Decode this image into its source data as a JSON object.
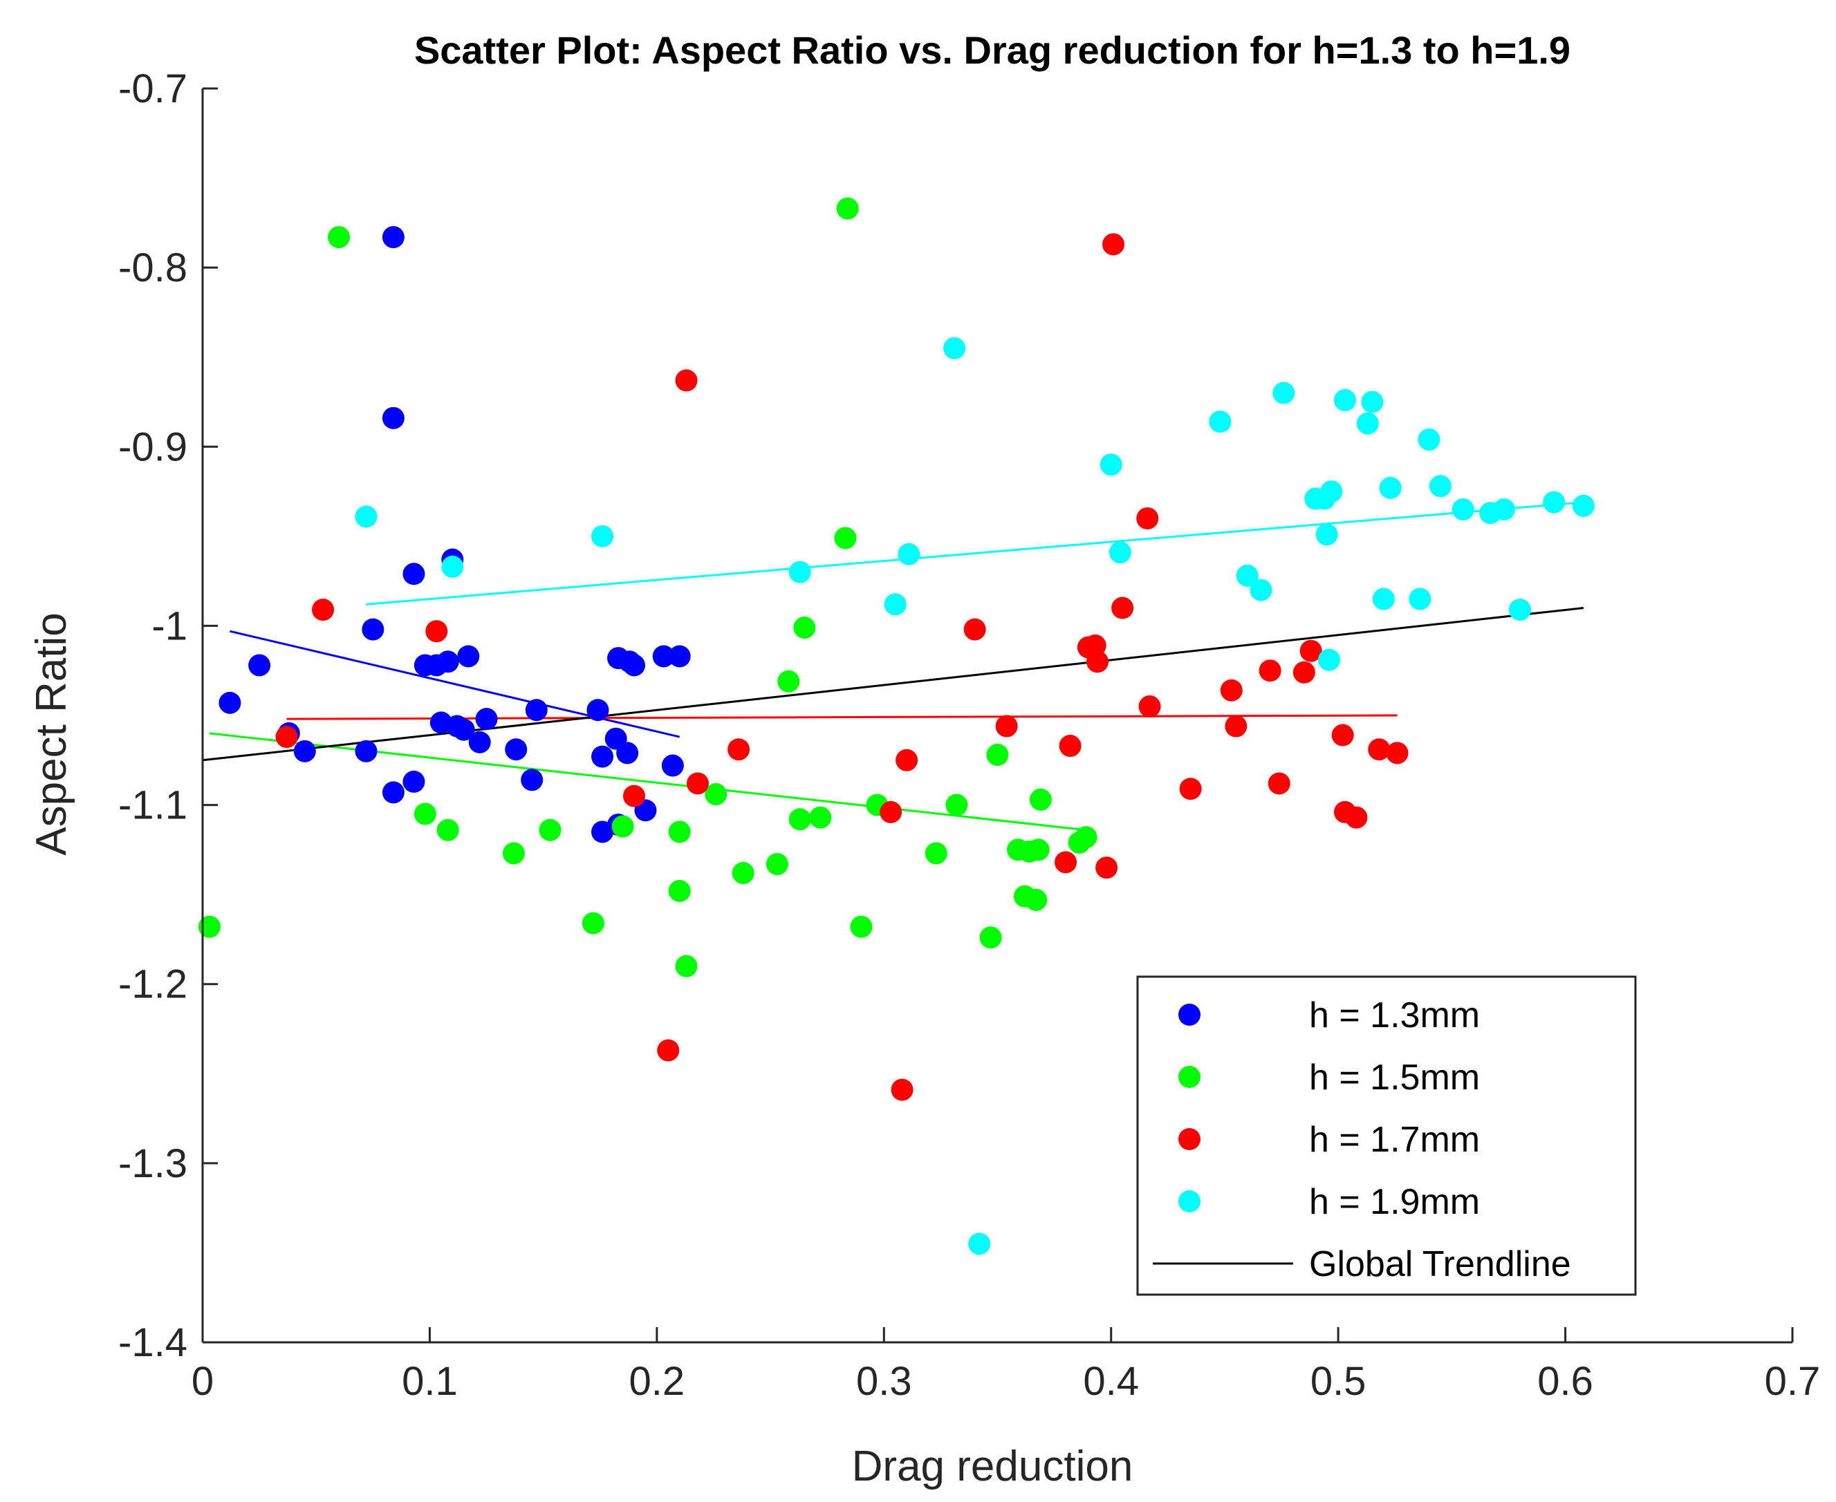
{
  "chart_data": {
    "type": "scatter",
    "title": "Scatter Plot: Aspect Ratio vs. Drag reduction for h=1.3 to h=1.9",
    "xlabel": "Drag reduction",
    "ylabel": "Aspect Ratio",
    "xlim": [
      0,
      0.7
    ],
    "ylim": [
      -1.4,
      -0.7
    ],
    "xticks": [
      0,
      0.1,
      0.2,
      0.3,
      0.4,
      0.5,
      0.6,
      0.7
    ],
    "xtick_labels": [
      "0",
      "0.1",
      "0.2",
      "0.3",
      "0.4",
      "0.5",
      "0.6",
      "0.7"
    ],
    "yticks": [
      -1.4,
      -1.3,
      -1.2,
      -1.1,
      -1.0,
      -0.9,
      -0.8,
      -0.7
    ],
    "ytick_labels": [
      "-1.4",
      "-1.3",
      "-1.2",
      "-1.1",
      "-1",
      "-0.9",
      "-0.8",
      "-0.7"
    ],
    "grid": false,
    "legend_position": "bottom-right",
    "series": [
      {
        "name": "h = 1.3mm",
        "color": "#0000ff",
        "points": [
          [
            0.012,
            -1.043
          ],
          [
            0.025,
            -1.022
          ],
          [
            0.038,
            -1.06
          ],
          [
            0.045,
            -1.07
          ],
          [
            0.072,
            -1.07
          ],
          [
            0.075,
            -1.002
          ],
          [
            0.084,
            -0.783
          ],
          [
            0.084,
            -0.884
          ],
          [
            0.084,
            -1.093
          ],
          [
            0.093,
            -1.087
          ],
          [
            0.093,
            -0.971
          ],
          [
            0.098,
            -1.022
          ],
          [
            0.103,
            -1.022
          ],
          [
            0.105,
            -1.054
          ],
          [
            0.108,
            -1.02
          ],
          [
            0.11,
            -0.963
          ],
          [
            0.112,
            -1.056
          ],
          [
            0.115,
            -1.058
          ],
          [
            0.117,
            -1.017
          ],
          [
            0.122,
            -1.065
          ],
          [
            0.125,
            -1.052
          ],
          [
            0.138,
            -1.069
          ],
          [
            0.145,
            -1.086
          ],
          [
            0.147,
            -1.047
          ],
          [
            0.174,
            -1.047
          ],
          [
            0.176,
            -1.073
          ],
          [
            0.176,
            -1.115
          ],
          [
            0.182,
            -1.063
          ],
          [
            0.183,
            -1.018
          ],
          [
            0.183,
            -1.111
          ],
          [
            0.187,
            -1.071
          ],
          [
            0.188,
            -1.02
          ],
          [
            0.19,
            -1.022
          ],
          [
            0.195,
            -1.103
          ],
          [
            0.203,
            -1.017
          ],
          [
            0.207,
            -1.078
          ],
          [
            0.21,
            -1.017
          ]
        ],
        "trend": [
          [
            0.012,
            -1.003
          ],
          [
            0.21,
            -1.062
          ]
        ]
      },
      {
        "name": "h = 1.5mm",
        "color": "#00ff00",
        "points": [
          [
            0.003,
            -1.168
          ],
          [
            0.06,
            -0.783
          ],
          [
            0.098,
            -1.105
          ],
          [
            0.108,
            -1.114
          ],
          [
            0.137,
            -1.127
          ],
          [
            0.153,
            -1.114
          ],
          [
            0.172,
            -1.166
          ],
          [
            0.185,
            -1.112
          ],
          [
            0.21,
            -1.115
          ],
          [
            0.21,
            -1.148
          ],
          [
            0.213,
            -1.19
          ],
          [
            0.226,
            -1.094
          ],
          [
            0.238,
            -1.138
          ],
          [
            0.253,
            -1.133
          ],
          [
            0.258,
            -1.031
          ],
          [
            0.263,
            -1.108
          ],
          [
            0.265,
            -1.001
          ],
          [
            0.272,
            -1.107
          ],
          [
            0.283,
            -0.951
          ],
          [
            0.284,
            -0.767
          ],
          [
            0.29,
            -1.168
          ],
          [
            0.297,
            -1.1
          ],
          [
            0.323,
            -1.127
          ],
          [
            0.332,
            -1.1
          ],
          [
            0.347,
            -1.174
          ],
          [
            0.35,
            -1.072
          ],
          [
            0.359,
            -1.125
          ],
          [
            0.362,
            -1.151
          ],
          [
            0.364,
            -1.126
          ],
          [
            0.367,
            -1.153
          ],
          [
            0.368,
            -1.125
          ],
          [
            0.369,
            -1.097
          ],
          [
            0.386,
            -1.121
          ],
          [
            0.389,
            -1.118
          ]
        ],
        "trend": [
          [
            0.003,
            -1.06
          ],
          [
            0.389,
            -1.114
          ]
        ]
      },
      {
        "name": "h = 1.7mm",
        "color": "#ff0000",
        "points": [
          [
            0.037,
            -1.062
          ],
          [
            0.053,
            -0.991
          ],
          [
            0.103,
            -1.003
          ],
          [
            0.19,
            -1.095
          ],
          [
            0.205,
            -1.237
          ],
          [
            0.213,
            -0.863
          ],
          [
            0.218,
            -1.088
          ],
          [
            0.236,
            -1.069
          ],
          [
            0.303,
            -1.104
          ],
          [
            0.308,
            -1.259
          ],
          [
            0.31,
            -1.075
          ],
          [
            0.34,
            -1.002
          ],
          [
            0.354,
            -1.056
          ],
          [
            0.38,
            -1.132
          ],
          [
            0.382,
            -1.067
          ],
          [
            0.39,
            -1.012
          ],
          [
            0.393,
            -1.011
          ],
          [
            0.394,
            -1.02
          ],
          [
            0.398,
            -1.135
          ],
          [
            0.401,
            -0.787
          ],
          [
            0.405,
            -0.99
          ],
          [
            0.416,
            -0.94
          ],
          [
            0.417,
            -1.045
          ],
          [
            0.435,
            -1.091
          ],
          [
            0.453,
            -1.036
          ],
          [
            0.455,
            -1.056
          ],
          [
            0.47,
            -1.025
          ],
          [
            0.474,
            -1.088
          ],
          [
            0.485,
            -1.026
          ],
          [
            0.488,
            -1.014
          ],
          [
            0.502,
            -1.061
          ],
          [
            0.503,
            -1.104
          ],
          [
            0.508,
            -1.107
          ],
          [
            0.518,
            -1.069
          ],
          [
            0.526,
            -1.071
          ]
        ],
        "trend": [
          [
            0.037,
            -1.052
          ],
          [
            0.526,
            -1.05
          ]
        ]
      },
      {
        "name": "h = 1.9mm",
        "color": "#00ffff",
        "points": [
          [
            0.072,
            -0.939
          ],
          [
            0.11,
            -0.967
          ],
          [
            0.176,
            -0.95
          ],
          [
            0.263,
            -0.97
          ],
          [
            0.305,
            -0.988
          ],
          [
            0.311,
            -0.96
          ],
          [
            0.331,
            -0.845
          ],
          [
            0.342,
            -1.345
          ],
          [
            0.4,
            -0.91
          ],
          [
            0.404,
            -0.959
          ],
          [
            0.448,
            -0.886
          ],
          [
            0.46,
            -0.972
          ],
          [
            0.466,
            -0.98
          ],
          [
            0.476,
            -0.87
          ],
          [
            0.49,
            -0.929
          ],
          [
            0.494,
            -0.929
          ],
          [
            0.495,
            -0.949
          ],
          [
            0.496,
            -1.019
          ],
          [
            0.497,
            -0.925
          ],
          [
            0.503,
            -0.874
          ],
          [
            0.513,
            -0.887
          ],
          [
            0.515,
            -0.875
          ],
          [
            0.52,
            -0.985
          ],
          [
            0.523,
            -0.923
          ],
          [
            0.536,
            -0.985
          ],
          [
            0.54,
            -0.896
          ],
          [
            0.545,
            -0.922
          ],
          [
            0.555,
            -0.935
          ],
          [
            0.567,
            -0.937
          ],
          [
            0.573,
            -0.935
          ],
          [
            0.58,
            -0.991
          ],
          [
            0.595,
            -0.931
          ],
          [
            0.608,
            -0.933
          ]
        ],
        "trend": [
          [
            0.072,
            -0.988
          ],
          [
            0.608,
            -0.931
          ]
        ]
      }
    ],
    "global_trendline": {
      "name": "Global Trendline",
      "color": "#000000",
      "points": [
        [
          0.0,
          -1.075
        ],
        [
          0.608,
          -0.99
        ]
      ]
    }
  }
}
